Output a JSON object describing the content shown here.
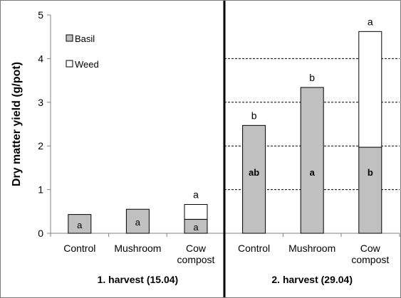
{
  "chart_data": {
    "type": "bar",
    "ylabel": "Dry matter yield (g/pot)",
    "ylim": [
      0,
      5
    ],
    "y_ticks": [
      0,
      1,
      2,
      3,
      4,
      5
    ],
    "grid": "horizontal dashed at 1-4 (right panel only)",
    "legend": {
      "placement": "top-left",
      "entries": [
        {
          "name": "Basil",
          "color": "#c0c0c0"
        },
        {
          "name": "Weed",
          "color": "#ffffff"
        }
      ]
    },
    "groups": [
      {
        "label": "1. harvest (15.04)",
        "categories": [
          {
            "name": [
              "Control"
            ],
            "basil": 0.43,
            "weed": 0,
            "basil_letter": "a",
            "top_letter": ""
          },
          {
            "name": [
              "Mushroom"
            ],
            "basil": 0.55,
            "weed": 0,
            "basil_letter": "a",
            "top_letter": ""
          },
          {
            "name": [
              "Cow",
              "compost"
            ],
            "basil": 0.32,
            "weed": 0.34,
            "basil_letter": "a",
            "top_letter": "a"
          }
        ]
      },
      {
        "label": "2. harvest (29.04)",
        "categories": [
          {
            "name": [
              "Control"
            ],
            "basil": 2.47,
            "weed": 0,
            "basil_letter": "ab",
            "top_letter": "b"
          },
          {
            "name": [
              "Mushroom"
            ],
            "basil": 3.34,
            "weed": 0,
            "basil_letter": "a",
            "top_letter": "b"
          },
          {
            "name": [
              "Cow",
              "compost"
            ],
            "basil": 1.97,
            "weed": 2.65,
            "basil_letter": "b",
            "top_letter": "a"
          }
        ]
      }
    ]
  }
}
